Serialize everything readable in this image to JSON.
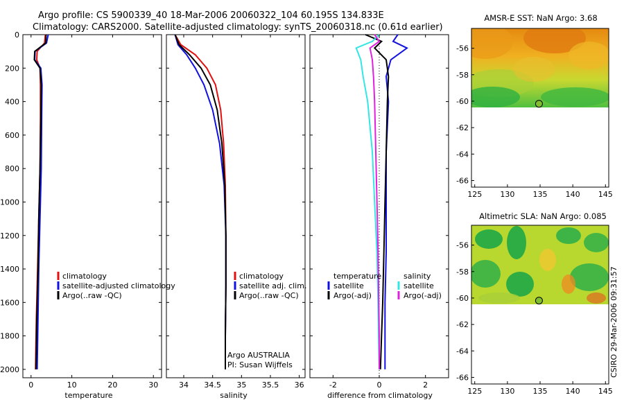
{
  "header": {
    "line1": "Argo profile: CS 5900339_40 18-Mar-2006 20060322_104 60.195S 134.833E",
    "line2": "Climatology: CARS2000. Satellite-adjusted climatology: synTS_20060318.nc (0.61d earlier)"
  },
  "credit": "CSIRO 29-Mar-2006 09:31:57",
  "colors": {
    "climatology": "#e01010",
    "satellite": "#1010e0",
    "argo": "#000000",
    "sat_salinity": "#33e6e6",
    "argo_salinity": "#e020e0"
  },
  "chart_data": [
    {
      "type": "line",
      "name": "temperature-panel",
      "xlabel": "temperature",
      "ylabel": "",
      "xlim": [
        -2,
        32
      ],
      "ylim": [
        2050,
        0
      ],
      "xticks": [
        "0",
        "10",
        "20",
        "30"
      ],
      "yticks": [
        "0",
        "200",
        "400",
        "600",
        "800",
        "1000",
        "1200",
        "1400",
        "1600",
        "1800",
        "2000"
      ],
      "legend": [
        "climatology",
        "satellite-adjusted climatology",
        "Argo(..raw -QC)"
      ],
      "series": [
        {
          "name": "climatology",
          "color": "#e01010",
          "x": [
            3.5,
            3.3,
            1.5,
            1.4,
            2.2,
            2.3,
            2.3,
            2.2,
            1.9,
            1.6,
            1.3,
            1.1
          ],
          "y": [
            0,
            50,
            100,
            150,
            200,
            300,
            500,
            800,
            1100,
            1400,
            1700,
            2000
          ]
        },
        {
          "name": "satellite-adjusted climatology",
          "color": "#1010e0",
          "x": [
            4.2,
            3.8,
            1.0,
            0.9,
            2.4,
            2.7,
            2.6,
            2.5,
            2.2,
            1.9,
            1.7,
            1.5
          ],
          "y": [
            0,
            50,
            100,
            150,
            200,
            300,
            500,
            800,
            1100,
            1400,
            1700,
            2000
          ]
        },
        {
          "name": "Argo(..raw -QC)",
          "color": "#000000",
          "x": [
            3.7,
            3.6,
            0.9,
            0.8,
            2.2,
            2.5,
            2.4,
            2.2,
            1.9,
            1.7,
            1.4,
            1.2
          ],
          "y": [
            0,
            50,
            100,
            150,
            200,
            300,
            500,
            800,
            1100,
            1400,
            1700,
            2000
          ]
        }
      ]
    },
    {
      "type": "line",
      "name": "salinity-panel",
      "xlabel": "salinity",
      "xlim": [
        33.7,
        36.1
      ],
      "ylim": [
        2050,
        0
      ],
      "xticks": [
        "34",
        "34.5",
        "35",
        "35.5",
        "36"
      ],
      "legend": [
        "climatology",
        "satellite adj. clim.",
        "Argo(..raw -QC)"
      ],
      "annotation": [
        "Argo AUSTRALIA",
        "PI: Susan Wijffels"
      ],
      "series": [
        {
          "name": "climatology",
          "color": "#e01010",
          "x": [
            33.85,
            33.95,
            34.2,
            34.4,
            34.55,
            34.64,
            34.69,
            34.72,
            34.73,
            34.73,
            34.72,
            34.72
          ],
          "y": [
            0,
            60,
            120,
            200,
            300,
            450,
            650,
            900,
            1200,
            1500,
            1800,
            2000
          ]
        },
        {
          "name": "satellite adj. clim.",
          "color": "#1010e0",
          "x": [
            33.85,
            33.9,
            34.05,
            34.2,
            34.35,
            34.5,
            34.62,
            34.7,
            34.73,
            34.73,
            34.72,
            34.72
          ],
          "y": [
            0,
            60,
            120,
            200,
            300,
            450,
            650,
            900,
            1200,
            1500,
            1800,
            2000
          ]
        },
        {
          "name": "Argo(..raw -QC)",
          "color": "#000000",
          "x": [
            33.85,
            33.92,
            34.1,
            34.3,
            34.46,
            34.58,
            34.66,
            34.71,
            34.73,
            34.73,
            34.72,
            34.72
          ],
          "y": [
            0,
            60,
            120,
            200,
            300,
            450,
            650,
            900,
            1200,
            1500,
            1800,
            2000
          ]
        }
      ]
    },
    {
      "type": "line",
      "name": "difference-panel",
      "xlabel": "difference from climatology",
      "xlim": [
        -3,
        3
      ],
      "ylim": [
        2050,
        0
      ],
      "xticks": [
        "-2",
        "0",
        "2"
      ],
      "legend_temperature_title": "temperature",
      "legend_salinity_title": "salinity",
      "legend": [
        "satellite",
        "Argo(-adj)",
        "satellite",
        "Argo(-adj)"
      ],
      "series": [
        {
          "name": "temperature satellite",
          "color": "#1010e0",
          "x": [
            0.8,
            0.6,
            1.2,
            0.5,
            0.3,
            0.4,
            0.3,
            0.3,
            0.3,
            0.25,
            0.25,
            0.25
          ],
          "y": [
            0,
            40,
            80,
            150,
            250,
            400,
            700,
            1000,
            1300,
            1600,
            1800,
            2000
          ]
        },
        {
          "name": "temperature Argo(-adj)",
          "color": "#000000",
          "x": [
            -0.6,
            0.1,
            -0.2,
            0.3,
            0.4,
            0.35,
            0.3,
            0.25,
            0.2,
            0.15,
            0.1,
            0.05
          ],
          "y": [
            0,
            40,
            80,
            150,
            250,
            400,
            700,
            1000,
            1300,
            1600,
            1800,
            2000
          ]
        },
        {
          "name": "salinity satellite",
          "color": "#33e6e6",
          "x": [
            0.0,
            -0.3,
            -1.0,
            -0.8,
            -0.7,
            -0.5,
            -0.3,
            -0.2,
            -0.1,
            -0.05,
            -0.03,
            0.0
          ],
          "y": [
            0,
            40,
            80,
            150,
            250,
            400,
            700,
            1000,
            1300,
            1600,
            1800,
            2000
          ]
        },
        {
          "name": "salinity Argo(-adj)",
          "color": "#e020e0",
          "x": [
            -0.2,
            0.0,
            -0.4,
            -0.3,
            -0.25,
            -0.2,
            -0.15,
            -0.1,
            -0.05,
            -0.02,
            0.0,
            0.0
          ],
          "y": [
            0,
            40,
            80,
            150,
            250,
            400,
            700,
            1000,
            1300,
            1600,
            1800,
            2000
          ]
        }
      ]
    },
    {
      "type": "heatmap",
      "name": "sst-map",
      "title": "AMSR-E SST: NaN Argo: 3.68",
      "xlim": [
        124.5,
        145.5
      ],
      "ylim": [
        -66.5,
        -54.5
      ],
      "xticks": [
        "125",
        "130",
        "135",
        "140",
        "145"
      ],
      "yticks": [
        "-56",
        "-58",
        "-60",
        "-62",
        "-64",
        "-66"
      ],
      "data_extent_lat": [
        -60,
        -54.5
      ],
      "marker": {
        "lon": 134.833,
        "lat": -60.195
      }
    },
    {
      "type": "heatmap",
      "name": "sla-map",
      "title": "Altimetric SLA: NaN Argo: 0.085",
      "xlim": [
        124.5,
        145.5
      ],
      "ylim": [
        -66.5,
        -54.5
      ],
      "xticks": [
        "125",
        "130",
        "135",
        "140",
        "145"
      ],
      "yticks": [
        "-56",
        "-58",
        "-60",
        "-62",
        "-64",
        "-66"
      ],
      "data_extent_lat": [
        -60,
        -54.5
      ],
      "marker": {
        "lon": 134.833,
        "lat": -60.195
      }
    }
  ]
}
